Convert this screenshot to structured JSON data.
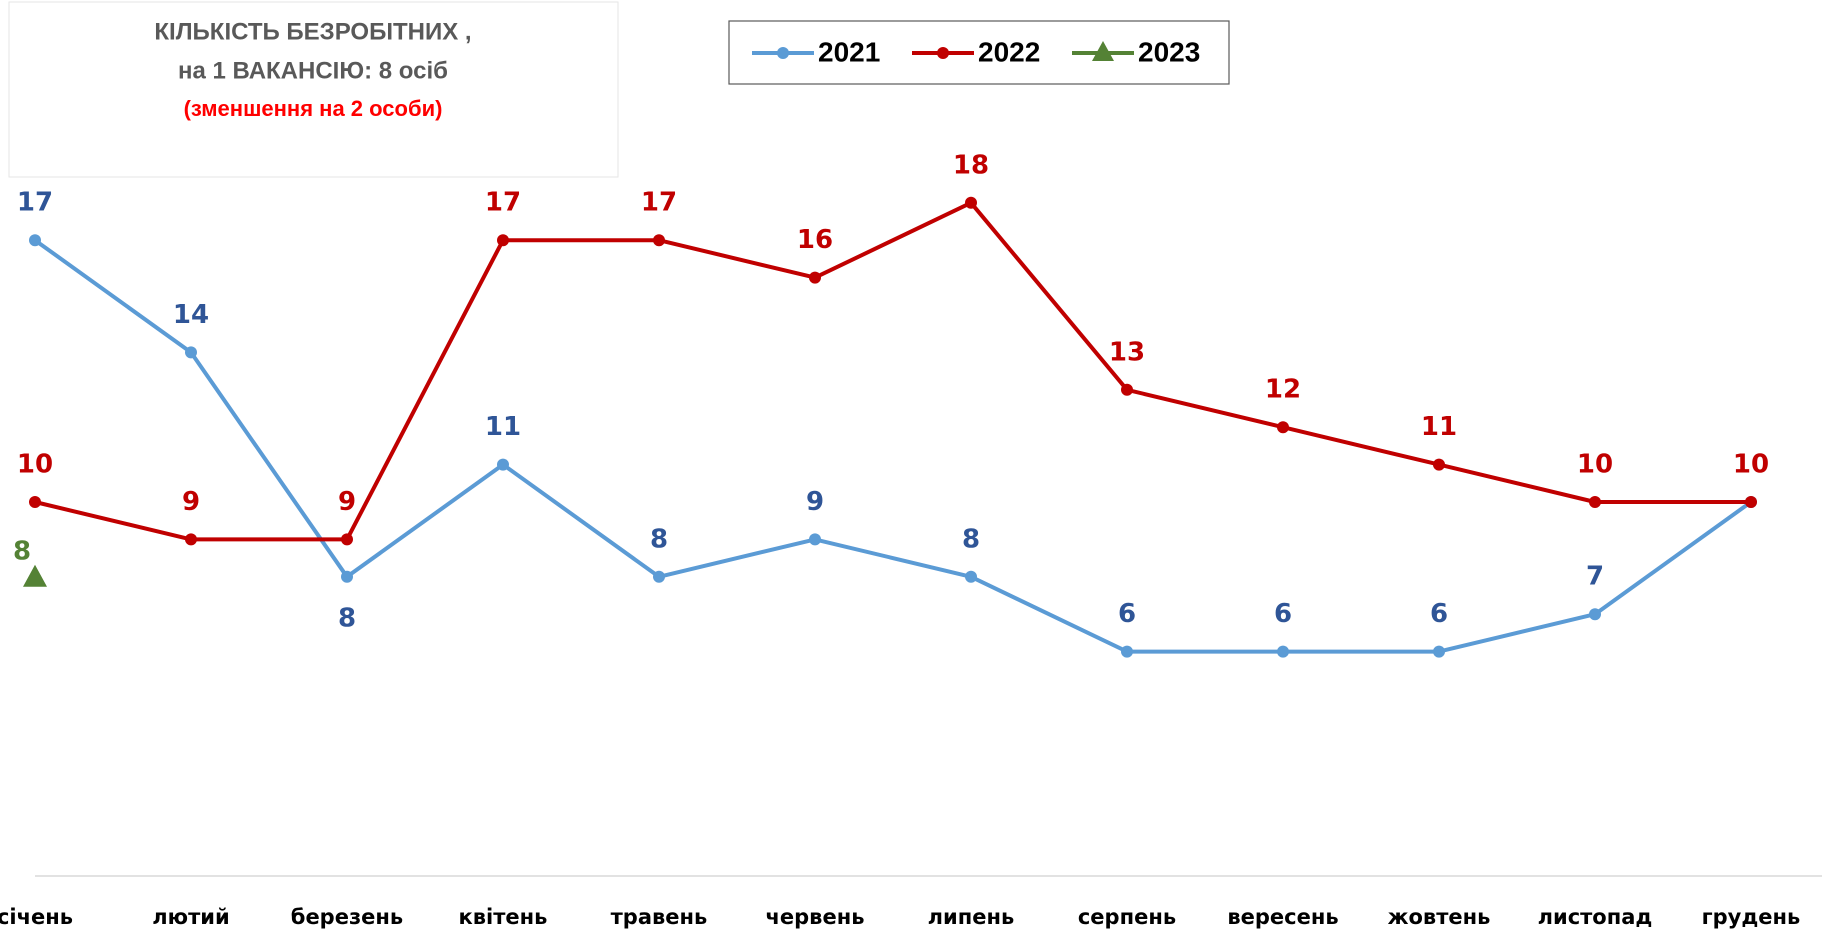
{
  "chart_data": {
    "type": "line",
    "title": [
      "КІЛЬКІСТЬ БЕЗРОБІТНИХ ,",
      "на 1 ВАКАНСІЮ: 8 осіб"
    ],
    "subtitle": "(зменшення на 2 особи)",
    "categories": [
      "січень",
      "лютий",
      "березень",
      "квітень",
      "травень",
      "червень",
      "липень",
      "серпень",
      "вересень",
      "жовтень",
      "листопад",
      "грудень"
    ],
    "series": [
      {
        "name": "2021",
        "color": "#5b9bd5",
        "label_color": "#2f5597",
        "marker": "circle",
        "values": [
          17,
          14,
          8,
          11,
          8,
          9,
          8,
          6,
          6,
          6,
          7,
          10
        ]
      },
      {
        "name": "2022",
        "color": "#c00000",
        "label_color": "#c00000",
        "marker": "circle",
        "values": [
          10,
          9,
          9,
          17,
          17,
          16,
          18,
          13,
          12,
          11,
          10,
          10
        ]
      },
      {
        "name": "2023",
        "color": "#548235",
        "label_color": "#548235",
        "marker": "triangle",
        "values": [
          8,
          null,
          null,
          null,
          null,
          null,
          null,
          null,
          null,
          null,
          null,
          null
        ]
      }
    ],
    "ylim": [
      0,
      20
    ],
    "legend": "top",
    "grid": false
  }
}
